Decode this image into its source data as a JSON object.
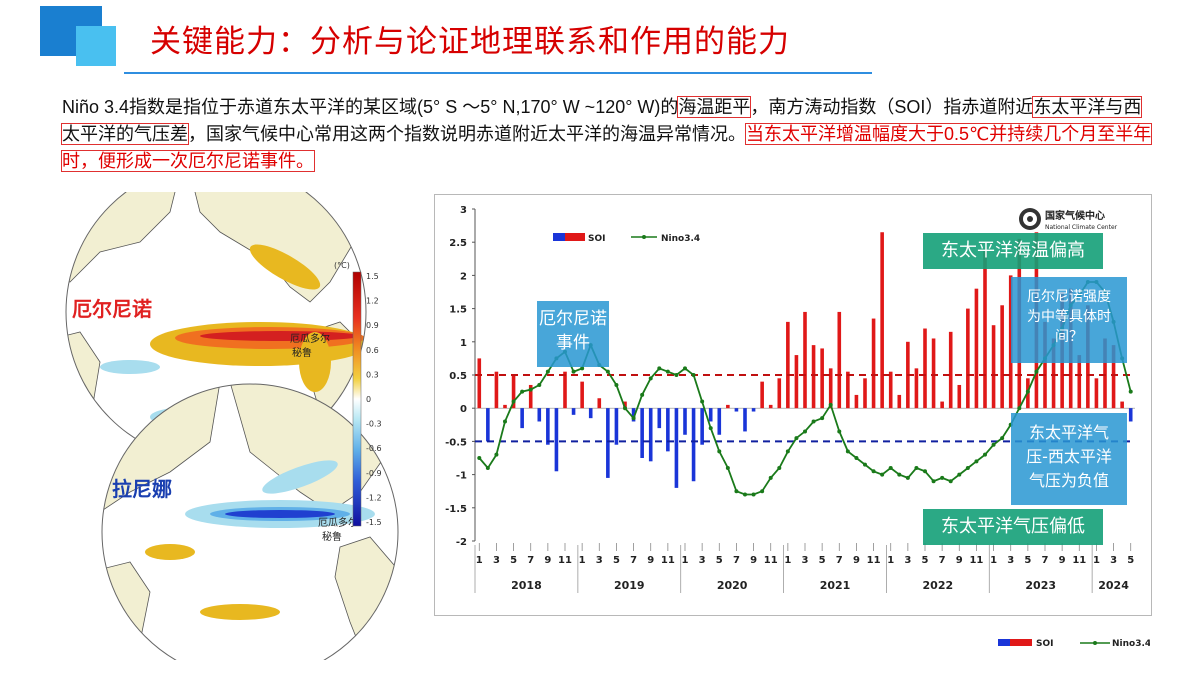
{
  "title": "关键能力：分析与论证地理联系和作用的能力",
  "paragraph": {
    "p1": "Niño 3.4指数是指位于赤道东太平洋的某区域(5° S ～5° N,170° W ~120° W)的",
    "p1_hl": "海温距平",
    "p2": "，南方涛动指数（SOI）指赤道附近",
    "p2_hl": "东太平洋与西太平洋的气压差",
    "p3": "，国家气候中心常用这两个指数说明赤道附近太平洋的海温异常情况。",
    "p3_red": "当东太平洋增温幅度大于0.5℃并持续几个月至半年时，便形成一次厄尔尼诺事件。"
  },
  "maps": {
    "elnino_label": "厄尔尼诺",
    "lanina_label": "拉尼娜",
    "ecuador_label_1": "厄瓜多尔",
    "peru_label_1": "秘鲁",
    "ecuador_label_2": "厄瓜多尔",
    "peru_label_2": "秘鲁",
    "colorbar_unit": "(°C)",
    "colorbar_ticks": [
      "1.5",
      "1.2",
      "0.9",
      "0.6",
      "0.3",
      "0",
      "-0.3",
      "-0.6",
      "-0.9",
      "-1.2",
      "-1.5"
    ],
    "colors": {
      "land": "#f2efd2",
      "ocean": "#ffffff",
      "warm": "#e8b820",
      "hot": "#d42020",
      "cool": "#a8ddee",
      "cold": "#2040d0"
    }
  },
  "callouts": {
    "elnino_event": "厄尔尼诺事件",
    "east_warm": "东太平洋海温偏高",
    "strength": "厄尔尼诺强度为中等具体时间？",
    "pressure_diff": "东太平洋气压-西太平洋气压为负值",
    "east_low": "东太平洋气压偏低"
  },
  "logo": {
    "name_cn": "国家气候中心",
    "name_en": "National Climate Center"
  },
  "legend": {
    "soi": "SOI",
    "nino": "Nino3.4"
  },
  "chart_data": {
    "type": "bar",
    "title": "",
    "ylim": [
      -2,
      3
    ],
    "yticks": [
      3,
      2.5,
      2,
      1.5,
      1,
      0.5,
      0,
      -0.5,
      -1,
      -1.5,
      -2
    ],
    "thresholds": {
      "nino_positive": 0.5,
      "soi_negative": -0.5
    },
    "years": [
      {
        "label": "2018",
        "start": 0,
        "count": 12
      },
      {
        "label": "2019",
        "start": 12,
        "count": 12
      },
      {
        "label": "2020",
        "start": 24,
        "count": 12
      },
      {
        "label": "2021",
        "start": 36,
        "count": 12
      },
      {
        "label": "2022",
        "start": 48,
        "count": 12
      },
      {
        "label": "2023",
        "start": 60,
        "count": 12
      },
      {
        "label": "2024",
        "start": 72,
        "count": 5
      }
    ],
    "month_labels": [
      "1",
      "3",
      "5",
      "7",
      "9",
      "11"
    ],
    "series": [
      {
        "name": "SOI",
        "values": [
          0.75,
          -0.5,
          0.55,
          0.05,
          0.5,
          -0.3,
          0.35,
          -0.2,
          -0.55,
          -0.95,
          0.55,
          -0.1,
          0.4,
          -0.15,
          0.15,
          -1.05,
          -0.55,
          0.1,
          -0.2,
          -0.75,
          -0.8,
          -0.3,
          -0.65,
          -1.2,
          -0.4,
          -1.1,
          -0.55,
          -0.2,
          -0.4,
          0.05,
          -0.05,
          -0.35,
          -0.05,
          0.4,
          0.05,
          0.45,
          1.3,
          0.8,
          1.45,
          0.95,
          0.9,
          0.6,
          1.45,
          0.55,
          0.2,
          0.45,
          1.35,
          2.65,
          0.55,
          0.2,
          1.0,
          0.6,
          1.2,
          1.05,
          0.1,
          1.15,
          0.35,
          1.5,
          1.8,
          2.4,
          1.25,
          1.55,
          2.0,
          2.55,
          0.45,
          2.65,
          1.3,
          1.05,
          1.75,
          1.8,
          0.8,
          1.55,
          0.45,
          1.05,
          0.95,
          0.1,
          -0.2
        ]
      },
      {
        "name": "Nino3.4",
        "values": [
          -0.75,
          -0.9,
          -0.7,
          -0.2,
          0.1,
          0.25,
          0.28,
          0.35,
          0.55,
          0.75,
          0.85,
          0.55,
          0.6,
          0.95,
          0.65,
          0.55,
          0.35,
          0.0,
          -0.15,
          0.2,
          0.45,
          0.6,
          0.55,
          0.5,
          0.6,
          0.5,
          0.1,
          -0.3,
          -0.65,
          -0.9,
          -1.25,
          -1.3,
          -1.3,
          -1.25,
          -1.05,
          -0.9,
          -0.65,
          -0.45,
          -0.35,
          -0.2,
          -0.15,
          0.05,
          -0.35,
          -0.65,
          -0.75,
          -0.85,
          -0.95,
          -1.0,
          -0.9,
          -1.0,
          -1.05,
          -0.9,
          -0.95,
          -1.1,
          -1.05,
          -1.1,
          -1.0,
          -0.9,
          -0.8,
          -0.7,
          -0.55,
          -0.45,
          -0.25,
          0.0,
          0.25,
          0.55,
          0.75,
          0.95,
          1.2,
          1.55,
          1.7,
          1.9,
          1.9,
          1.75,
          1.3,
          0.75,
          0.25
        ]
      }
    ]
  }
}
